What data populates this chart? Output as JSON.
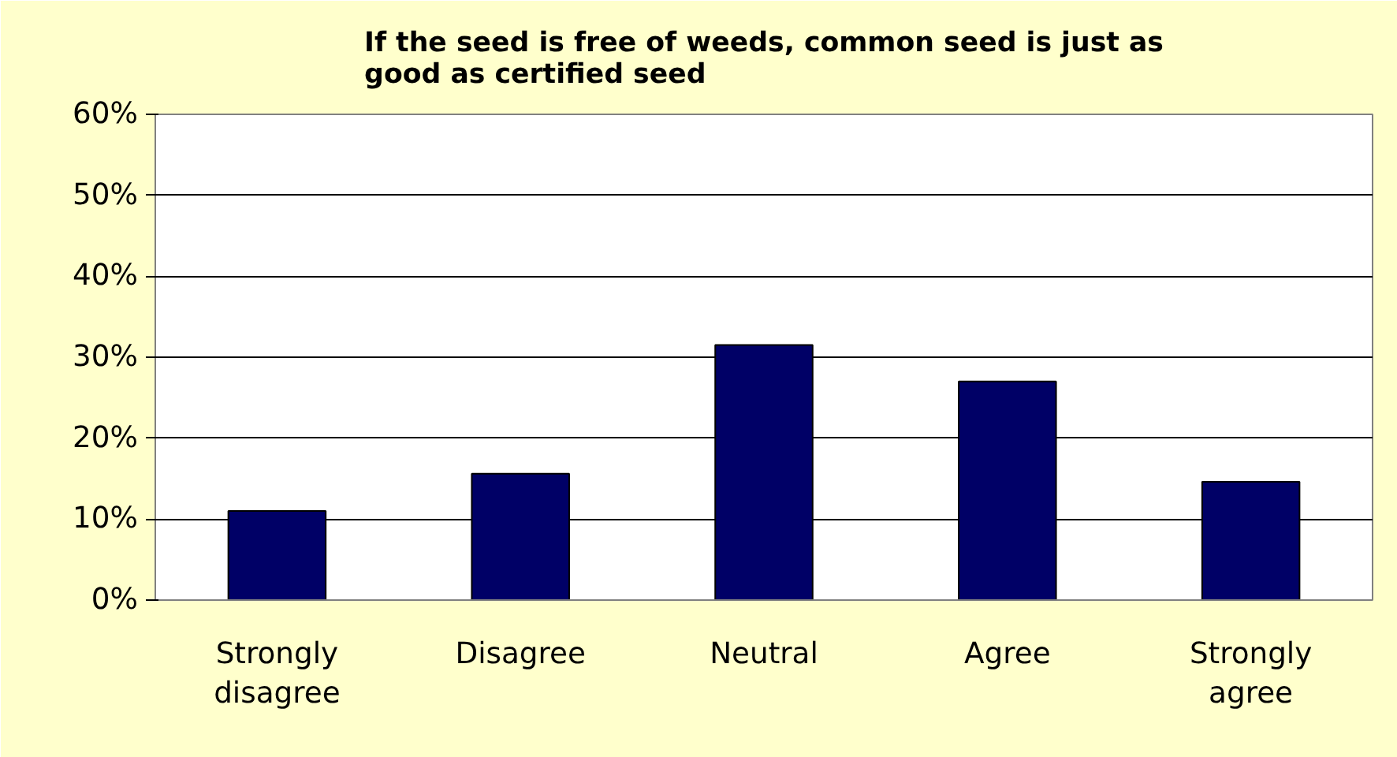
{
  "chart_data": {
    "type": "bar",
    "title": "If the seed is free of weeds, common seed is just as good as certified seed",
    "categories": [
      "Strongly disagree",
      "Disagree",
      "Neutral",
      "Agree",
      "Strongly agree"
    ],
    "values": [
      11.0,
      15.6,
      31.5,
      27.0,
      14.6
    ],
    "color": "#000066",
    "ylim": [
      0,
      60
    ],
    "yticks": [
      {
        "value": 0,
        "label": "0%"
      },
      {
        "value": 10,
        "label": "10%"
      },
      {
        "value": 20,
        "label": "20%"
      },
      {
        "value": 30,
        "label": "30%"
      },
      {
        "value": 40,
        "label": "40%"
      },
      {
        "value": 50,
        "label": "50%"
      },
      {
        "value": 60,
        "label": "60%"
      }
    ],
    "grid": "y"
  }
}
